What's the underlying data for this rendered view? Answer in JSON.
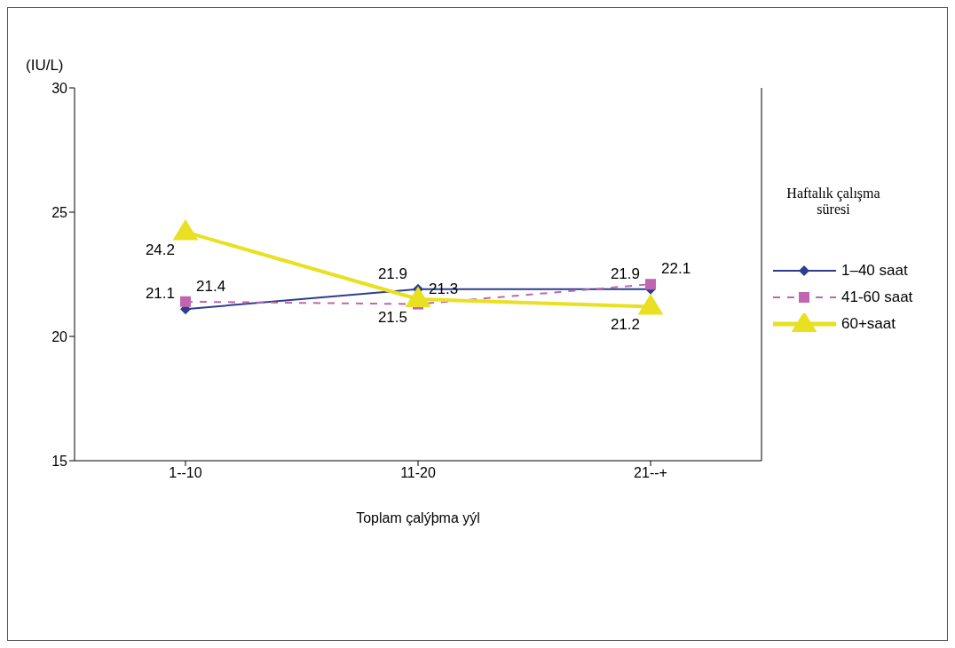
{
  "chart_data": {
    "type": "line",
    "ylabel": "(IU/L)",
    "xlabel": "Toplam çalýþma yýl",
    "legend_title": "Haftalık çalışma süresi",
    "categories": [
      "1--10",
      "11-20",
      "21--+"
    ],
    "series": [
      {
        "name": "1–40 saat",
        "color": "#2e3d8f",
        "values": [
          21.1,
          21.9,
          21.9
        ],
        "marker": "diamond",
        "line_style": "solid"
      },
      {
        "name": "41-60 saat",
        "color": "#c066b0",
        "values": [
          21.4,
          21.3,
          22.1
        ],
        "marker": "square",
        "line_style": "dashed"
      },
      {
        "name": "60+saat",
        "color": "#e8e020",
        "values": [
          24.2,
          21.5,
          21.2
        ],
        "marker": "triangle",
        "line_style": "solid"
      }
    ],
    "ylim": [
      15,
      30
    ],
    "yticks": [
      15,
      20,
      25,
      30
    ],
    "grid": false,
    "legend": "right",
    "data_labels": true
  }
}
